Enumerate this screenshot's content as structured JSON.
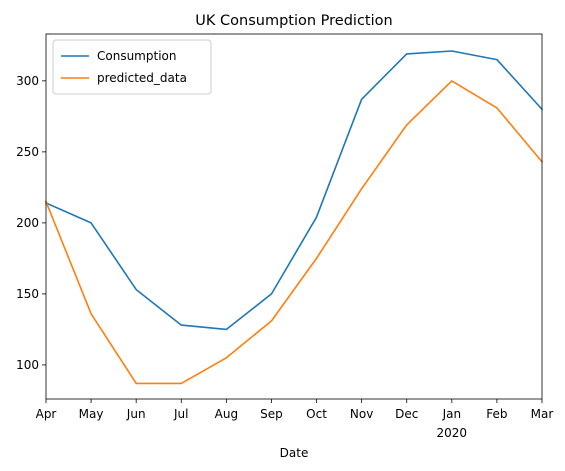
{
  "chart_data": {
    "type": "line",
    "title": "UK Consumption Prediction",
    "xlabel": "Date",
    "ylabel": "",
    "categories": [
      "Apr",
      "May",
      "Jun",
      "Jul",
      "Aug",
      "Sep",
      "Oct",
      "Nov",
      "Dec",
      "Jan",
      "Feb",
      "Mar"
    ],
    "year_label": "2020",
    "year_label_at": "Jan",
    "series": [
      {
        "name": "Consumption",
        "color": "#1f77b4",
        "values": [
          214,
          200,
          153,
          128,
          125,
          150,
          204,
          287,
          319,
          321,
          315,
          280
        ]
      },
      {
        "name": "predicted_data",
        "color": "#ff7f0e",
        "values": [
          215,
          136,
          87,
          87,
          105,
          131,
          175,
          224,
          269,
          300,
          281,
          243
        ]
      }
    ],
    "ylim": [
      76,
      333
    ],
    "yticks": [
      100,
      150,
      200,
      250,
      300
    ],
    "grid": false,
    "legend": "top-left"
  }
}
